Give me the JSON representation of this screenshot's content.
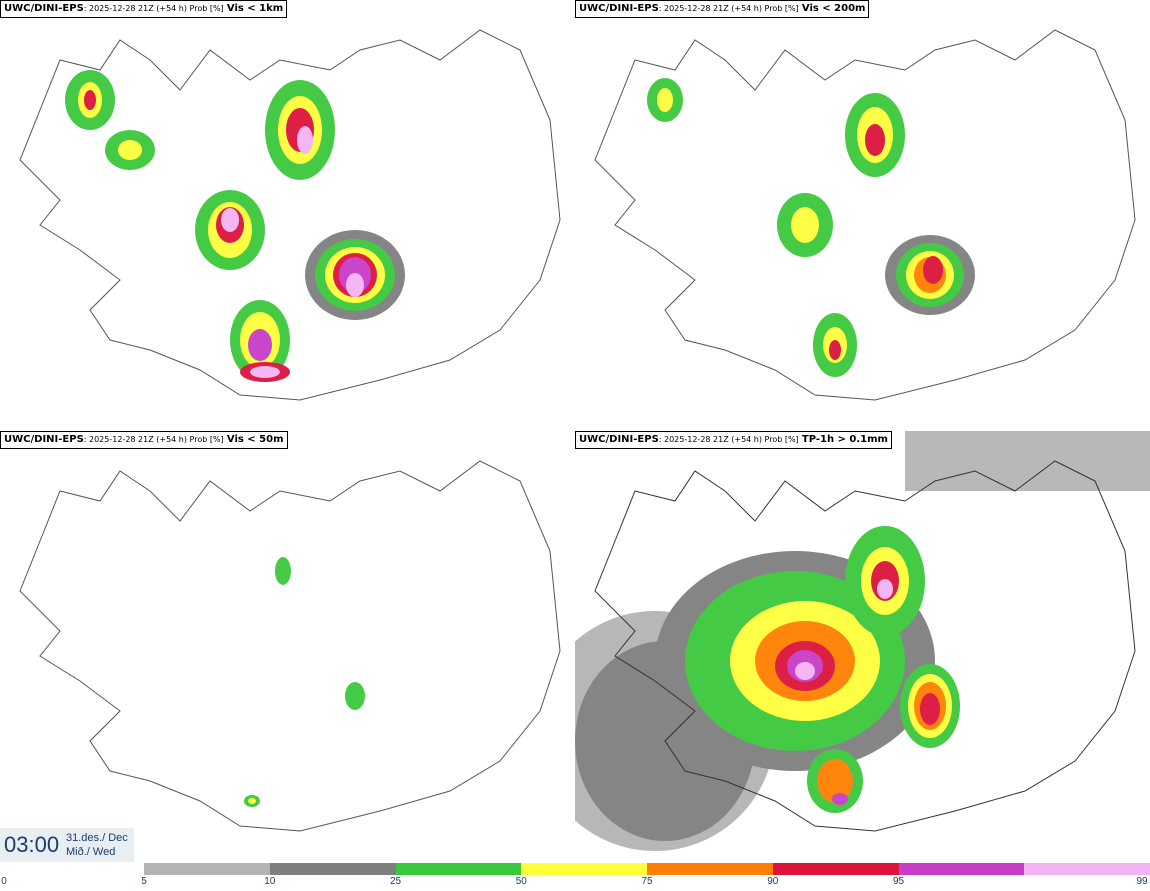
{
  "panels": [
    {
      "source": "UWC/DINI-EPS",
      "meta": ": 2025-12-28 21Z (+54 h) Prob [%]",
      "threshold": "Vis < 1km"
    },
    {
      "source": "UWC/DINI-EPS",
      "meta": ": 2025-12-28 21Z (+54 h) Prob [%]",
      "threshold": "Vis < 200m"
    },
    {
      "source": "UWC/DINI-EPS",
      "meta": ": 2025-12-28 21Z (+54 h) Prob [%]",
      "threshold": "Vis < 50m"
    },
    {
      "source": "UWC/DINI-EPS",
      "meta": ": 2025-12-28 21Z (+54 h) Prob [%]",
      "threshold": "TP-1h > 0.1mm"
    }
  ],
  "valid_time": {
    "time": "03:00",
    "date_line1": "31.des./ Dec",
    "date_line2": "Mið./ Wed"
  },
  "legend": {
    "ticks": [
      "0",
      "5",
      "10",
      "25",
      "50",
      "75",
      "90",
      "95",
      "99"
    ],
    "colors": [
      "#b4b4b4",
      "#7f7f7f",
      "#3cc83c",
      "#ffff3c",
      "#ff7f00",
      "#dc143c",
      "#c83cc8",
      "#f4b4f4"
    ]
  }
}
